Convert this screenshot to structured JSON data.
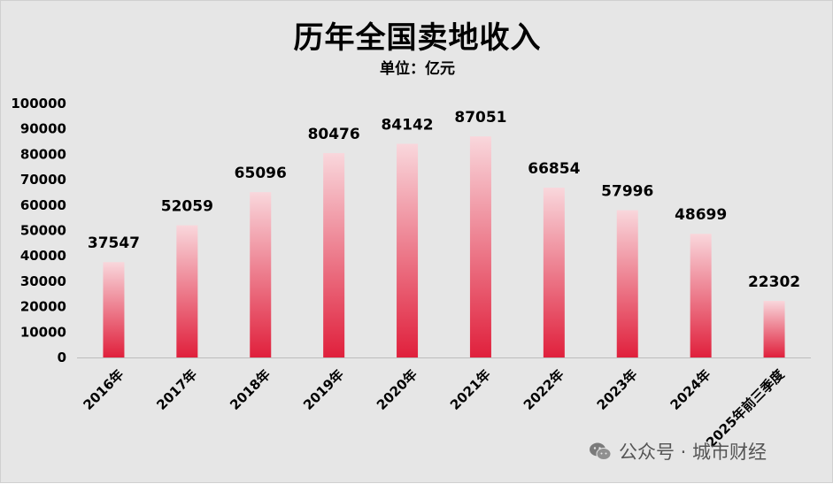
{
  "chart_data": {
    "type": "bar",
    "title": "历年全国卖地收入",
    "subtitle": "单位：亿元",
    "categories": [
      "2016年",
      "2017年",
      "2018年",
      "2019年",
      "2020年",
      "2021年",
      "2022年",
      "2023年",
      "2024年",
      "2025年前三季度"
    ],
    "values": [
      37547,
      52059,
      65096,
      80476,
      84142,
      87051,
      66854,
      57996,
      48699,
      22302
    ],
    "ylim": [
      0,
      100000
    ],
    "yticks": [
      0,
      10000,
      20000,
      30000,
      40000,
      50000,
      60000,
      70000,
      80000,
      90000,
      100000
    ],
    "grid": false,
    "legend": false,
    "colors": {
      "bar_top": "#f9d7dc",
      "bar_bottom": "#e0203c",
      "background": "#e6e6e6"
    }
  },
  "watermark": {
    "text": "公众号 · 城市财经",
    "icon": "wechat-icon"
  }
}
